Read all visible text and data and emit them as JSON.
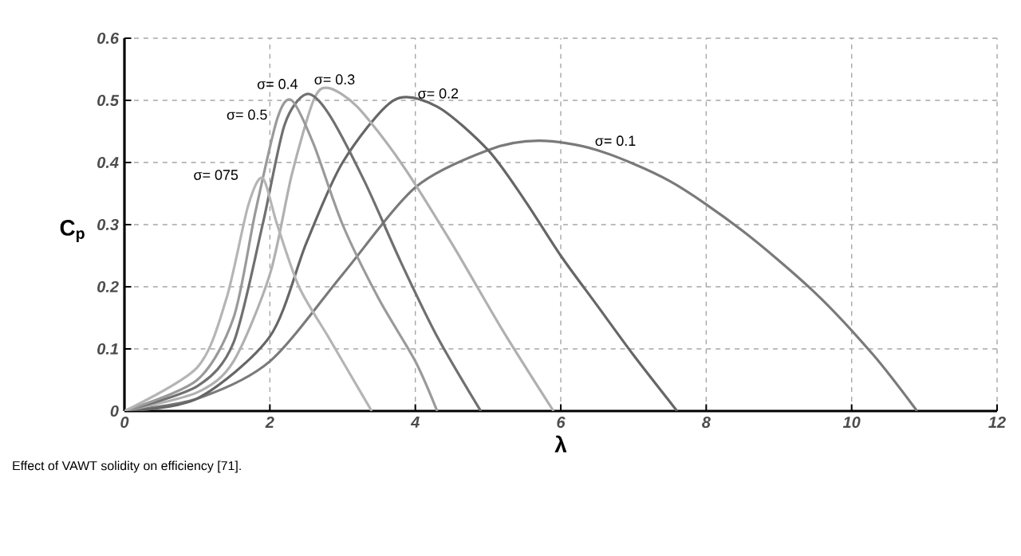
{
  "chart_data": {
    "type": "line",
    "xlabel": "λ",
    "ylabel": "C$_{p}$",
    "xlim": [
      0,
      12
    ],
    "ylim": [
      0,
      0.6
    ],
    "xticks": [
      0,
      2,
      4,
      6,
      8,
      10,
      12
    ],
    "yticks": [
      0,
      0.1,
      0.2,
      0.3,
      0.4,
      0.5,
      0.6
    ],
    "grid": true,
    "legend": false,
    "marker": "none",
    "line_style": "solid",
    "annotations": [
      "Effect of VAWT solidity on efficiency [71]."
    ],
    "series": [
      {
        "name": "σ= 0.1",
        "color": "#7a7a7a",
        "x": [
          0,
          1,
          2,
          3,
          4,
          5,
          5.7,
          6.5,
          7.5,
          8.5,
          9.5,
          10.3,
          10.9
        ],
        "values": [
          0,
          0.02,
          0.08,
          0.22,
          0.36,
          0.42,
          0.435,
          0.42,
          0.37,
          0.29,
          0.19,
          0.09,
          0
        ]
      },
      {
        "name": "σ= 0.2",
        "color": "#666666",
        "x": [
          0,
          1,
          2,
          2.5,
          3,
          3.7,
          4.3,
          5,
          5.5,
          6,
          6.5,
          7,
          7.6
        ],
        "values": [
          0,
          0.02,
          0.12,
          0.27,
          0.4,
          0.5,
          0.49,
          0.42,
          0.34,
          0.25,
          0.17,
          0.09,
          0
        ]
      },
      {
        "name": "σ= 0.3",
        "color": "#b0b0b0",
        "x": [
          0,
          1,
          1.5,
          2,
          2.3,
          2.6,
          2.8,
          3.2,
          3.8,
          4.5,
          5.2,
          5.9
        ],
        "values": [
          0,
          0.03,
          0.08,
          0.22,
          0.38,
          0.5,
          0.52,
          0.49,
          0.4,
          0.27,
          0.13,
          0
        ]
      },
      {
        "name": "σ= 0.4",
        "color": "#707070",
        "x": [
          0,
          1,
          1.5,
          1.9,
          2.2,
          2.5,
          2.8,
          3.3,
          3.8,
          4.3,
          4.9
        ],
        "values": [
          0,
          0.04,
          0.11,
          0.3,
          0.46,
          0.51,
          0.48,
          0.37,
          0.24,
          0.12,
          0
        ]
      },
      {
        "name": "σ= 0.5",
        "color": "#9a9a9a",
        "x": [
          0,
          1,
          1.5,
          1.8,
          2.1,
          2.3,
          2.6,
          3,
          3.5,
          4,
          4.3
        ],
        "values": [
          0,
          0.05,
          0.15,
          0.32,
          0.47,
          0.5,
          0.43,
          0.3,
          0.18,
          0.08,
          0
        ]
      },
      {
        "name": "σ= 075",
        "color": "#b5b5b5",
        "x": [
          0,
          1,
          1.4,
          1.7,
          1.9,
          2.1,
          2.4,
          2.8,
          3.1,
          3.4
        ],
        "values": [
          0,
          0.07,
          0.18,
          0.33,
          0.375,
          0.3,
          0.2,
          0.12,
          0.06,
          0
        ]
      }
    ]
  }
}
